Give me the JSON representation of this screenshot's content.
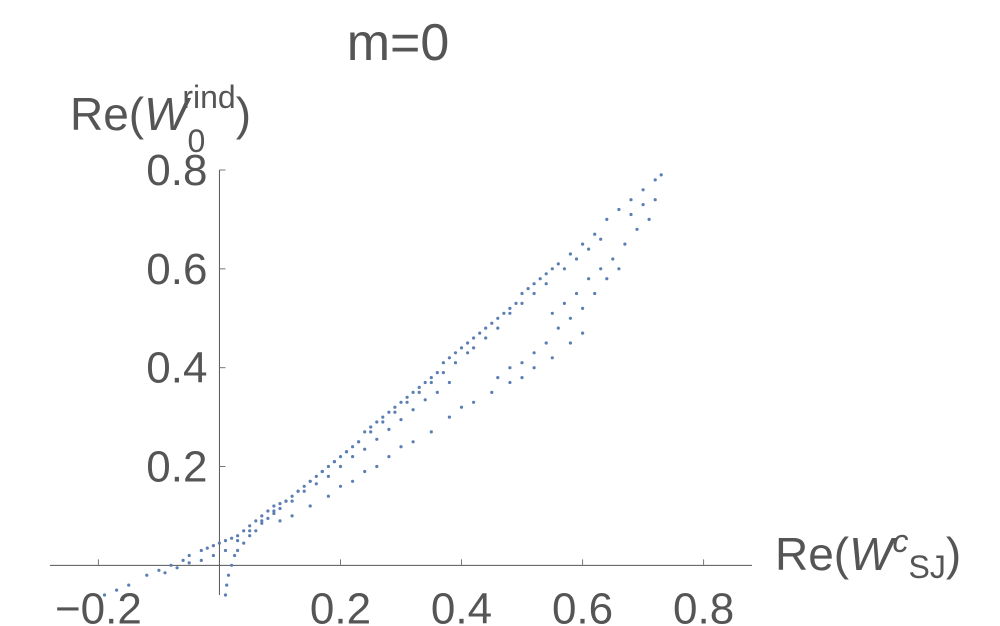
{
  "chart_data": {
    "type": "scatter",
    "title": "m=0",
    "ylabel": {
      "prefix": "Re(",
      "symbol": "W",
      "sub": "0",
      "sup": "rind",
      "suffix": ")"
    },
    "xlabel": {
      "prefix": "Re(",
      "symbol": "W",
      "sup": "c",
      "sub": "SJ",
      "suffix": ")"
    },
    "xlim": [
      -0.28,
      0.88
    ],
    "ylim": [
      -0.06,
      0.8
    ],
    "x_ticks": [
      {
        "value": -0.2,
        "label": "−0.2"
      },
      {
        "value": 0.2,
        "label": "0.2"
      },
      {
        "value": 0.4,
        "label": "0.4"
      },
      {
        "value": 0.6,
        "label": "0.6"
      },
      {
        "value": 0.8,
        "label": "0.8"
      }
    ],
    "y_ticks": [
      {
        "value": 0.2,
        "label": "0.2"
      },
      {
        "value": 0.4,
        "label": "0.4"
      },
      {
        "value": 0.6,
        "label": "0.6"
      },
      {
        "value": 0.8,
        "label": "0.8"
      }
    ],
    "marker_color": "#5b7fb3",
    "series": [
      {
        "points": [
          [
            -0.19,
            -0.06
          ],
          [
            -0.17,
            -0.05
          ],
          [
            -0.15,
            -0.04
          ],
          [
            -0.12,
            -0.02
          ],
          [
            -0.1,
            -0.01
          ],
          [
            -0.08,
            0.0
          ],
          [
            -0.06,
            0.01
          ],
          [
            -0.05,
            0.02
          ],
          [
            -0.03,
            0.03
          ],
          [
            -0.02,
            0.035
          ],
          [
            -0.01,
            0.04
          ],
          [
            0.0,
            0.045
          ],
          [
            0.01,
            0.05
          ],
          [
            0.02,
            0.055
          ],
          [
            0.03,
            0.06
          ],
          [
            0.04,
            0.07
          ],
          [
            0.05,
            0.08
          ],
          [
            0.06,
            0.09
          ],
          [
            0.07,
            0.1
          ],
          [
            0.08,
            0.11
          ],
          [
            0.09,
            0.12
          ],
          [
            0.1,
            0.125
          ],
          [
            0.11,
            0.13
          ],
          [
            0.12,
            0.14
          ],
          [
            0.13,
            0.15
          ],
          [
            0.14,
            0.16
          ],
          [
            0.15,
            0.17
          ],
          [
            0.16,
            0.18
          ],
          [
            0.17,
            0.19
          ],
          [
            0.18,
            0.2
          ],
          [
            0.19,
            0.21
          ],
          [
            0.2,
            0.22
          ],
          [
            0.21,
            0.23
          ],
          [
            0.22,
            0.24
          ],
          [
            0.23,
            0.25
          ],
          [
            0.24,
            0.27
          ],
          [
            0.25,
            0.28
          ],
          [
            0.26,
            0.29
          ],
          [
            0.27,
            0.3
          ],
          [
            0.28,
            0.31
          ],
          [
            0.29,
            0.32
          ],
          [
            0.3,
            0.33
          ],
          [
            0.31,
            0.34
          ],
          [
            0.32,
            0.35
          ],
          [
            0.33,
            0.36
          ],
          [
            0.34,
            0.37
          ],
          [
            0.35,
            0.38
          ],
          [
            0.36,
            0.39
          ],
          [
            0.37,
            0.41
          ],
          [
            0.38,
            0.42
          ],
          [
            0.39,
            0.43
          ],
          [
            0.4,
            0.44
          ],
          [
            0.41,
            0.45
          ],
          [
            0.42,
            0.46
          ],
          [
            0.43,
            0.47
          ],
          [
            0.44,
            0.48
          ],
          [
            0.45,
            0.49
          ],
          [
            0.46,
            0.5
          ],
          [
            0.47,
            0.51
          ],
          [
            0.48,
            0.52
          ],
          [
            0.49,
            0.53
          ],
          [
            0.5,
            0.55
          ],
          [
            0.51,
            0.56
          ],
          [
            0.52,
            0.57
          ],
          [
            0.53,
            0.58
          ],
          [
            0.54,
            0.59
          ],
          [
            0.55,
            0.6
          ],
          [
            0.56,
            0.61
          ],
          [
            0.58,
            0.63
          ],
          [
            0.6,
            0.65
          ],
          [
            0.62,
            0.67
          ],
          [
            0.64,
            0.7
          ],
          [
            0.66,
            0.72
          ],
          [
            0.68,
            0.74
          ],
          [
            0.7,
            0.76
          ],
          [
            0.72,
            0.78
          ],
          [
            0.73,
            0.79
          ],
          [
            0.01,
            -0.06
          ],
          [
            0.012,
            -0.04
          ],
          [
            0.015,
            -0.02
          ],
          [
            0.02,
            0.0
          ],
          [
            0.025,
            0.02
          ],
          [
            0.03,
            0.03
          ],
          [
            0.04,
            0.045
          ],
          [
            0.05,
            0.06
          ],
          [
            0.06,
            0.07
          ],
          [
            0.07,
            0.085
          ],
          [
            0.08,
            0.095
          ],
          [
            0.09,
            0.105
          ],
          [
            0.1,
            0.115
          ],
          [
            0.12,
            0.13
          ],
          [
            0.14,
            0.15
          ],
          [
            0.16,
            0.165
          ],
          [
            0.18,
            0.18
          ],
          [
            0.2,
            0.2
          ],
          [
            0.22,
            0.22
          ],
          [
            0.24,
            0.235
          ],
          [
            0.26,
            0.255
          ],
          [
            0.28,
            0.275
          ],
          [
            0.3,
            0.295
          ],
          [
            0.32,
            0.315
          ],
          [
            0.34,
            0.335
          ],
          [
            0.36,
            0.35
          ],
          [
            0.38,
            0.37
          ],
          [
            0.1,
            0.09
          ],
          [
            0.12,
            0.1
          ],
          [
            0.15,
            0.12
          ],
          [
            0.18,
            0.14
          ],
          [
            0.2,
            0.16
          ],
          [
            0.22,
            0.17
          ],
          [
            0.24,
            0.19
          ],
          [
            0.26,
            0.2
          ],
          [
            0.28,
            0.22
          ],
          [
            0.3,
            0.24
          ],
          [
            0.32,
            0.25
          ],
          [
            0.35,
            0.27
          ],
          [
            0.38,
            0.3
          ],
          [
            0.4,
            0.32
          ],
          [
            0.42,
            0.33
          ],
          [
            0.45,
            0.35
          ],
          [
            0.48,
            0.37
          ],
          [
            0.5,
            0.38
          ],
          [
            0.52,
            0.4
          ],
          [
            0.55,
            0.42
          ],
          [
            0.58,
            0.45
          ],
          [
            0.6,
            0.47
          ],
          [
            0.46,
            0.38
          ],
          [
            0.48,
            0.4
          ],
          [
            0.5,
            0.41
          ],
          [
            0.52,
            0.43
          ],
          [
            0.54,
            0.45
          ],
          [
            0.56,
            0.48
          ],
          [
            0.58,
            0.5
          ],
          [
            0.6,
            0.52
          ],
          [
            0.62,
            0.55
          ],
          [
            0.64,
            0.58
          ],
          [
            0.66,
            0.6
          ],
          [
            0.55,
            0.51
          ],
          [
            0.57,
            0.53
          ],
          [
            0.59,
            0.55
          ],
          [
            0.61,
            0.58
          ],
          [
            0.63,
            0.6
          ],
          [
            0.65,
            0.62
          ],
          [
            0.67,
            0.65
          ],
          [
            0.69,
            0.68
          ],
          [
            0.71,
            0.7
          ],
          [
            0.7,
            0.73
          ],
          [
            0.72,
            0.74
          ],
          [
            0.68,
            0.71
          ],
          [
            0.63,
            0.66
          ],
          [
            0.61,
            0.64
          ],
          [
            0.59,
            0.62
          ],
          [
            0.57,
            0.6
          ],
          [
            0.54,
            0.57
          ],
          [
            0.52,
            0.55
          ],
          [
            0.5,
            0.53
          ],
          [
            0.48,
            0.51
          ],
          [
            0.46,
            0.48
          ],
          [
            0.44,
            0.46
          ],
          [
            0.42,
            0.44
          ],
          [
            0.41,
            0.43
          ],
          [
            0.39,
            0.41
          ],
          [
            0.37,
            0.39
          ],
          [
            0.35,
            0.37
          ],
          [
            0.33,
            0.35
          ],
          [
            0.31,
            0.33
          ],
          [
            0.29,
            0.31
          ],
          [
            0.27,
            0.29
          ],
          [
            0.25,
            0.27
          ],
          [
            0.23,
            0.25
          ],
          [
            0.21,
            0.23
          ],
          [
            0.19,
            0.21
          ],
          [
            0.17,
            0.19
          ],
          [
            0.15,
            0.17
          ],
          [
            0.13,
            0.15
          ],
          [
            0.11,
            0.13
          ],
          [
            0.09,
            0.11
          ],
          [
            0.07,
            0.09
          ],
          [
            0.05,
            0.07
          ],
          [
            0.03,
            0.05
          ],
          [
            0.01,
            0.03
          ],
          [
            -0.01,
            0.02
          ],
          [
            -0.03,
            0.01
          ],
          [
            -0.05,
            0.005
          ],
          [
            -0.07,
            -0.005
          ],
          [
            -0.09,
            -0.015
          ]
        ]
      }
    ]
  }
}
